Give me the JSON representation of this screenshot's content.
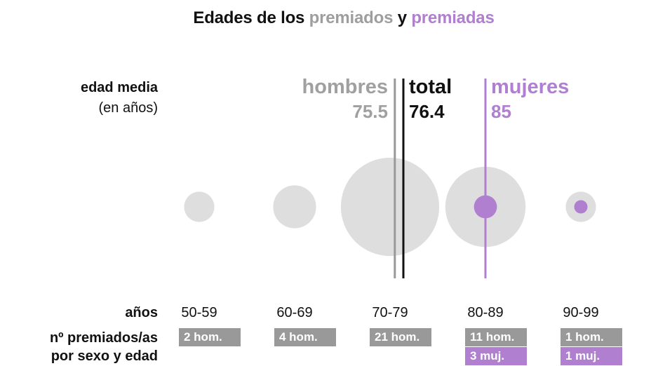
{
  "title": {
    "part1": "Edades de los ",
    "part2": "premiados",
    "part3": " y ",
    "part4": "premiadas"
  },
  "labels": {
    "avg_line1": "edad media",
    "avg_line2": "(en años)",
    "years": "años",
    "counts_line1": "nº premiados/as",
    "counts_line2": "por sexo y edad"
  },
  "averages": {
    "men": {
      "label": "hombres",
      "value": "75.5"
    },
    "total": {
      "label": "total",
      "value": "76.4"
    },
    "women": {
      "label": "mujeres",
      "value": "85"
    }
  },
  "colors": {
    "men": "#999999",
    "women": "#b07fcf",
    "total": "#111111",
    "bubble": "#dedede"
  },
  "groups": [
    {
      "age": "50-59",
      "men_label": "2 hom.",
      "women_label": ""
    },
    {
      "age": "60-69",
      "men_label": "4 hom.",
      "women_label": ""
    },
    {
      "age": "70-79",
      "men_label": "21 hom.",
      "women_label": ""
    },
    {
      "age": "80-89",
      "men_label": "11 hom.",
      "women_label": "3 muj."
    },
    {
      "age": "90-99",
      "men_label": "1 hom.",
      "women_label": "1 muj."
    }
  ],
  "chart_data": {
    "type": "scatter",
    "title": "Edades de los premiados y premiadas",
    "categories": [
      "50-59",
      "60-69",
      "70-79",
      "80-89",
      "90-99"
    ],
    "series": [
      {
        "name": "hombres",
        "values": [
          2,
          4,
          21,
          11,
          1
        ]
      },
      {
        "name": "mujeres",
        "values": [
          0,
          0,
          0,
          3,
          1
        ]
      }
    ],
    "reference_lines": [
      {
        "name": "hombres",
        "value": 75.5
      },
      {
        "name": "total",
        "value": 76.4
      },
      {
        "name": "mujeres",
        "value": 85
      }
    ]
  }
}
